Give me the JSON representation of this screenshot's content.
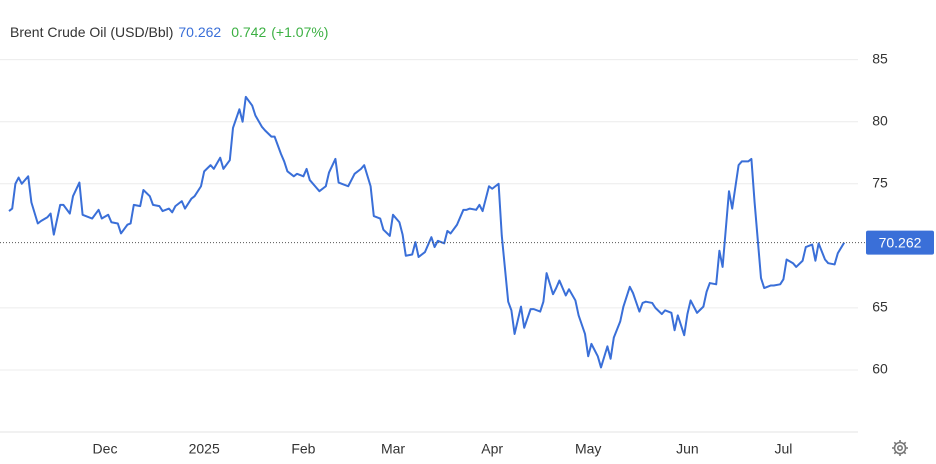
{
  "chart_data": {
    "type": "line",
    "title": "Brent Crude Oil (USD/Bbl)",
    "change": 0.742,
    "change_label": "(+1.07%)",
    "color": "#3a6fd8",
    "change_color": "#3cb043",
    "x": [
      0,
      1,
      2,
      3,
      4,
      6,
      7,
      9,
      10,
      12,
      13,
      14,
      16,
      17,
      19,
      20,
      22,
      23,
      25,
      26,
      28,
      29,
      31,
      32,
      34,
      35,
      37,
      38,
      39,
      41,
      42,
      44,
      45,
      47,
      48,
      50,
      51,
      52,
      54,
      55,
      57,
      58,
      60,
      61,
      63,
      64,
      66,
      67,
      69,
      70,
      72,
      73,
      74,
      76,
      77,
      79,
      80,
      82,
      83,
      85,
      86,
      87,
      89,
      90,
      92,
      93,
      94,
      96,
      97,
      99,
      100,
      102,
      103,
      104,
      106,
      107,
      108,
      110,
      111,
      113,
      114,
      116,
      117,
      119,
      120,
      122,
      123,
      124,
      126,
      127,
      128,
      130,
      132,
      133,
      134,
      136,
      137,
      138,
      140,
      142,
      143,
      144,
      146,
      147,
      148,
      150,
      151,
      153,
      154,
      156,
      157,
      158,
      160,
      161,
      163,
      164,
      166,
      167,
      168,
      170,
      171,
      172,
      174,
      175,
      177,
      178,
      180,
      181,
      182,
      184,
      185,
      187,
      188,
      189,
      191,
      192,
      194,
      195,
      197,
      198,
      199,
      201,
      202,
      204,
      205,
      207,
      208,
      209,
      211,
      212,
      213,
      215,
      217,
      218,
      219,
      221,
      222,
      223,
      225,
      226,
      228,
      229,
      231,
      232,
      233,
      235,
      236,
      238,
      239,
      241,
      242,
      243,
      245,
      246,
      248,
      249,
      251,
      252,
      253,
      255,
      256,
      258,
      259,
      261
    ],
    "values": [
      72.8,
      73.0,
      75.0,
      75.5,
      75.0,
      75.6,
      73.5,
      71.8,
      72.0,
      72.3,
      72.6,
      70.9,
      73.3,
      73.3,
      72.6,
      74.0,
      75.1,
      72.5,
      72.3,
      72.2,
      72.9,
      72.2,
      72.5,
      71.9,
      71.8,
      71.0,
      71.7,
      71.8,
      73.3,
      73.2,
      74.5,
      74.0,
      73.3,
      73.2,
      72.8,
      73.0,
      72.7,
      73.2,
      73.6,
      73.0,
      73.8,
      74.0,
      74.8,
      76.0,
      76.5,
      76.2,
      77.1,
      76.2,
      76.9,
      79.5,
      81.0,
      80.0,
      82.0,
      81.3,
      80.5,
      79.6,
      79.3,
      78.8,
      78.8,
      77.4,
      76.8,
      76.0,
      75.6,
      75.8,
      75.6,
      76.2,
      75.3,
      74.7,
      74.4,
      74.8,
      75.9,
      77.0,
      75.1,
      75.0,
      74.8,
      75.3,
      75.8,
      76.2,
      76.5,
      74.8,
      72.4,
      72.2,
      71.3,
      70.8,
      72.5,
      71.9,
      70.9,
      69.2,
      69.3,
      70.3,
      69.1,
      69.5,
      70.7,
      69.9,
      70.4,
      70.2,
      71.2,
      71.0,
      71.7,
      72.9,
      72.9,
      73.0,
      72.9,
      73.3,
      72.8,
      74.8,
      74.6,
      75.0,
      70.8,
      65.5,
      64.8,
      62.9,
      65.1,
      63.4,
      64.9,
      64.9,
      64.7,
      65.5,
      67.8,
      66.1,
      66.6,
      67.2,
      66.0,
      66.5,
      65.6,
      64.4,
      62.9,
      61.1,
      62.1,
      61.1,
      60.2,
      61.9,
      60.9,
      62.6,
      63.9,
      65.1,
      66.7,
      66.2,
      64.7,
      65.4,
      65.5,
      65.4,
      65.0,
      64.5,
      64.8,
      64.6,
      63.2,
      64.4,
      62.8,
      64.5,
      65.6,
      64.6,
      65.1,
      66.3,
      67.0,
      66.9,
      69.6,
      68.3,
      74.4,
      73.0,
      76.5,
      76.8,
      76.8,
      77.0,
      73.5,
      67.4,
      66.6,
      66.8,
      66.8,
      66.9,
      67.3,
      68.9,
      68.6,
      68.3,
      68.8,
      69.9,
      70.1,
      68.8,
      70.2,
      68.9,
      68.6,
      68.5,
      69.4,
      70.262
    ],
    "xlim": [
      0,
      265
    ],
    "xticks": [
      {
        "value": 30,
        "label": "Dec"
      },
      {
        "value": 61,
        "label": "2025"
      },
      {
        "value": 92,
        "label": "Feb"
      },
      {
        "value": 120,
        "label": "Mar"
      },
      {
        "value": 151,
        "label": "Apr"
      },
      {
        "value": 181,
        "label": "May"
      },
      {
        "value": 212,
        "label": "Jun"
      },
      {
        "value": 242,
        "label": "Jul"
      }
    ],
    "ylim": [
      55,
      89
    ],
    "yticks": [
      60,
      65,
      75,
      80,
      85
    ],
    "grid": true
  }
}
